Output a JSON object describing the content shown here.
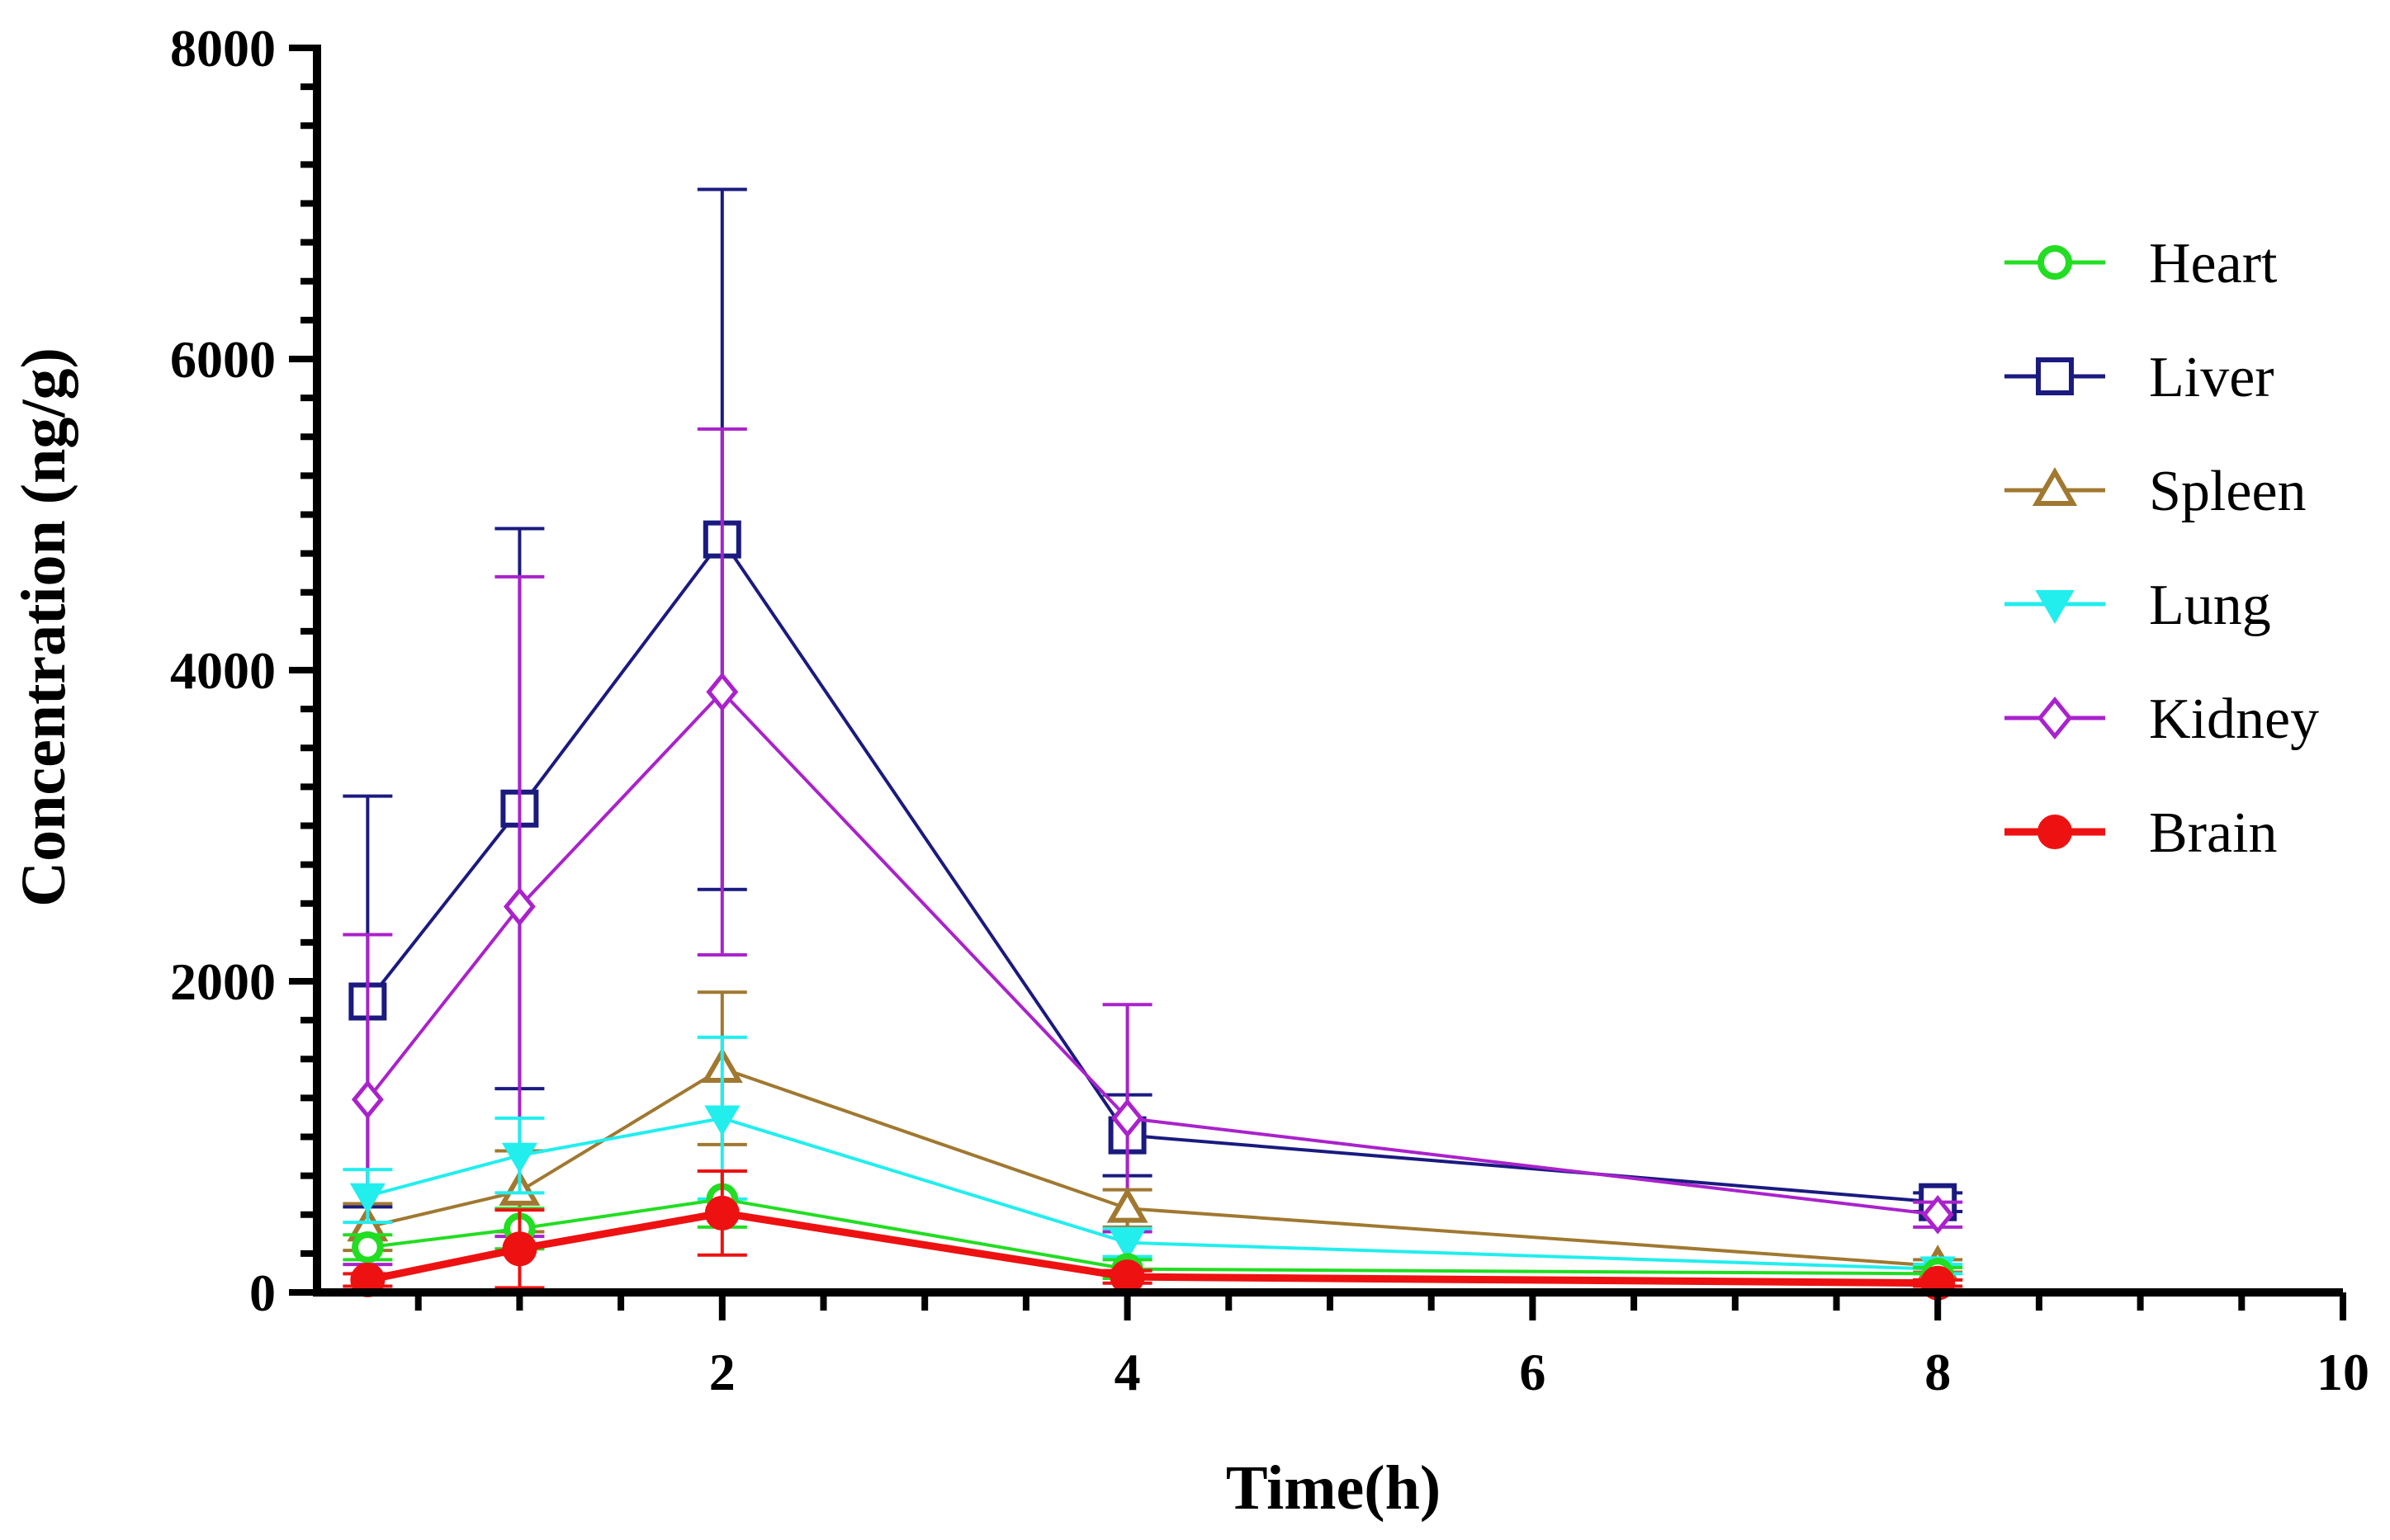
{
  "chart_data": {
    "type": "line",
    "title": "",
    "xlabel": "Time(h)",
    "ylabel": "Concentration (ng/g)",
    "xlim": [
      0,
      10
    ],
    "ylim": [
      0,
      8000
    ],
    "x_ticks": [
      2,
      4,
      6,
      8,
      10
    ],
    "y_ticks": [
      0,
      2000,
      4000,
      6000,
      8000
    ],
    "x_tick_labels": [
      "2",
      "4",
      "6",
      "8",
      "10"
    ],
    "y_tick_labels": [
      "0",
      "2000",
      "4000",
      "6000",
      "8000"
    ],
    "x": [
      0.25,
      1,
      2,
      4,
      8
    ],
    "grid": false,
    "legend_position": "right",
    "series": [
      {
        "name": "Heart",
        "color": "#22dd22",
        "marker": "circle-open",
        "values": [
          290,
          410,
          600,
          150,
          120
        ],
        "errors": [
          80,
          130,
          180,
          60,
          40
        ]
      },
      {
        "name": "Liver",
        "color": "#1a1a80",
        "marker": "square-open",
        "values": [
          1870,
          3110,
          4840,
          1010,
          580
        ],
        "errors": [
          1320,
          1800,
          2250,
          260,
          60
        ]
      },
      {
        "name": "Spleen",
        "color": "#a07830",
        "marker": "triangle-up-open",
        "values": [
          420,
          650,
          1440,
          540,
          170
        ],
        "errors": [
          150,
          260,
          490,
          120,
          40
        ]
      },
      {
        "name": "Lung",
        "color": "#22eeee",
        "marker": "triangle-down-filled",
        "values": [
          620,
          880,
          1120,
          320,
          150
        ],
        "errors": [
          170,
          240,
          520,
          90,
          30
        ]
      },
      {
        "name": "Kidney",
        "color": "#aa22cc",
        "marker": "diamond-open",
        "values": [
          1240,
          2480,
          3860,
          1120,
          500
        ],
        "errors": [
          1060,
          2120,
          1690,
          730,
          80
        ]
      },
      {
        "name": "Brain",
        "color": "#ee1111",
        "marker": "circle-filled",
        "values": [
          80,
          280,
          510,
          100,
          60
        ],
        "errors": [
          40,
          250,
          270,
          40,
          20
        ]
      }
    ]
  }
}
